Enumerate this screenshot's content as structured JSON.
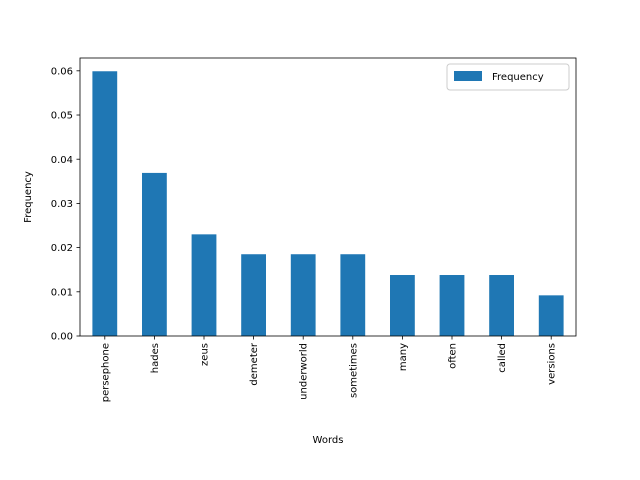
{
  "chart_data": {
    "type": "bar",
    "title": "",
    "xlabel": "Words",
    "ylabel": "Frequency",
    "categories": [
      "persephone",
      "hades",
      "zeus",
      "demeter",
      "underworld",
      "sometimes",
      "many",
      "often",
      "called",
      "versions"
    ],
    "series": [
      {
        "name": "Frequency",
        "color": "#1f77b4",
        "values": [
          0.0599,
          0.0369,
          0.023,
          0.0185,
          0.0185,
          0.0185,
          0.0138,
          0.0138,
          0.0138,
          0.0092
        ]
      }
    ],
    "ylim": [
      0,
      0.0629
    ],
    "yticks": [
      "0.00",
      "0.01",
      "0.02",
      "0.03",
      "0.04",
      "0.05",
      "0.06"
    ],
    "ytick_values": [
      0,
      0.01,
      0.02,
      0.03,
      0.04,
      0.05,
      0.06
    ],
    "grid": false,
    "legend": "top-right"
  }
}
